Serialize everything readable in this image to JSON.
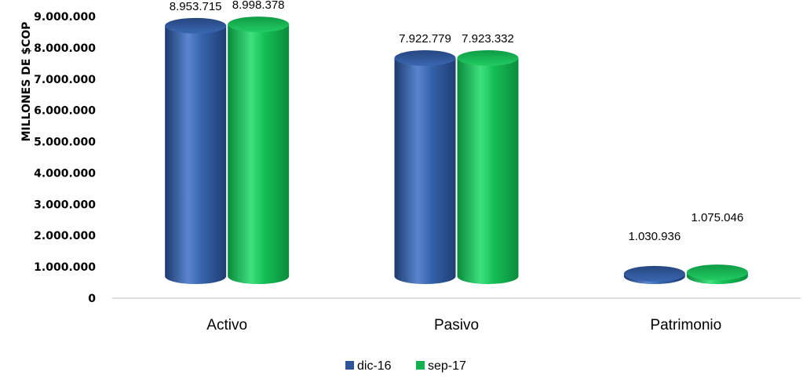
{
  "chart_data": {
    "type": "bar",
    "categories": [
      "Activo",
      "Pasivo",
      "Patrimonio"
    ],
    "series": [
      {
        "name": "dic-16",
        "values": [
          8953715,
          7922779,
          1030936
        ],
        "labels": [
          "8.953.715",
          "7.922.779",
          "1.030.936"
        ],
        "color": "#2E5597"
      },
      {
        "name": "sep-17",
        "values": [
          8998378,
          7923332,
          1075046
        ],
        "labels": [
          "8.998.378",
          "7.923.332",
          "1.075.046"
        ],
        "color": "#12B34E"
      }
    ],
    "title": "",
    "xlabel": "",
    "ylabel": "MILLONES DE $COP",
    "ylim": [
      0,
      9000000
    ],
    "yticks": [
      0,
      1000000,
      2000000,
      3000000,
      4000000,
      5000000,
      6000000,
      7000000,
      8000000,
      9000000
    ],
    "ytick_labels": [
      "0",
      "1.000.000",
      "2.000.000",
      "3.000.000",
      "4.000.000",
      "5.000.000",
      "6.000.000",
      "7.000.000",
      "8.000.000",
      "9.000.000"
    ],
    "grid": false,
    "legend_position": "bottom",
    "bar_style": "3d-cylinder"
  }
}
